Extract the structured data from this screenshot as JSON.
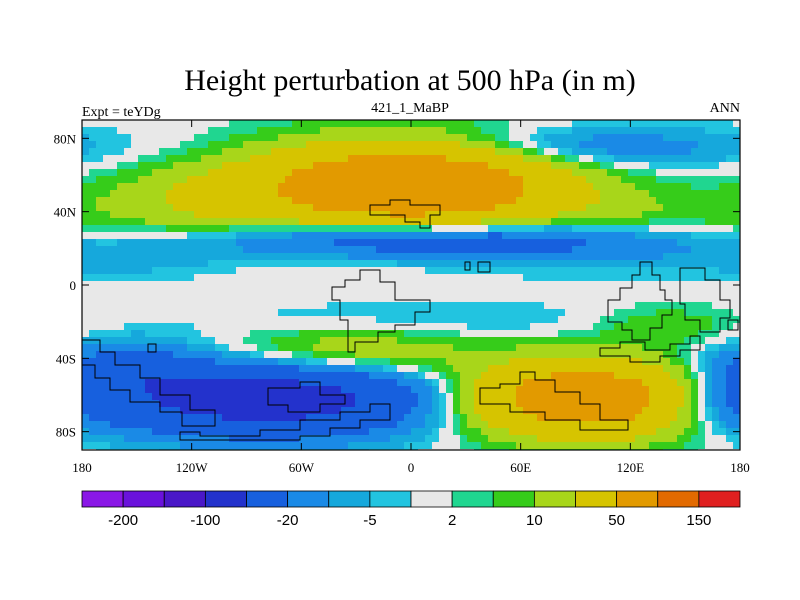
{
  "chart_data": {
    "type": "heatmap",
    "title": "Height perturbation at 500 hPa (in m)",
    "left_label": "Expt = teYDg",
    "center_label": "421_1_MaBP",
    "right_label": "ANN",
    "x_ticks": [
      "180",
      "120W",
      "60W",
      "0",
      "60E",
      "120E",
      "180"
    ],
    "y_ticks": [
      "80N",
      "40N",
      "0",
      "40S",
      "80S"
    ],
    "xlim": [
      -180,
      180
    ],
    "ylim": [
      -90,
      90
    ],
    "colorbar": {
      "colors": [
        "#8a17e6",
        "#6a12dc",
        "#4a17c8",
        "#2332cc",
        "#1760de",
        "#1a8ae6",
        "#16a8dc",
        "#22c4e0",
        "#e8e8e8",
        "#20d690",
        "#36cc1a",
        "#a8d61a",
        "#d6c400",
        "#e29a00",
        "#e26a00",
        "#e02020"
      ],
      "labels": [
        "-200",
        "-100",
        "-20",
        "-5",
        "2",
        "10",
        "50",
        "150"
      ]
    },
    "field_blobs": [
      {
        "lon": 0,
        "lat": 55,
        "slon": 55,
        "slat": 16,
        "amp": 95
      },
      {
        "lon": -110,
        "lat": 45,
        "slon": 45,
        "slat": 14,
        "amp": 18
      },
      {
        "lon": 80,
        "lat": 75,
        "slon": 70,
        "slat": 8,
        "amp": -20
      },
      {
        "lon": 120,
        "lat": 38,
        "slon": 50,
        "slat": 10,
        "amp": 8
      },
      {
        "lon": 10,
        "lat": 25,
        "slon": 80,
        "slat": 7,
        "amp": -40
      },
      {
        "lon": 100,
        "lat": 15,
        "slon": 60,
        "slat": 8,
        "amp": -6
      },
      {
        "lon": -150,
        "lat": 15,
        "slon": 40,
        "slat": 8,
        "amp": -7
      },
      {
        "lon": -35,
        "lat": -37,
        "slon": 50,
        "slat": 10,
        "amp": 22
      },
      {
        "lon": 140,
        "lat": -22,
        "slon": 30,
        "slat": 8,
        "amp": 10
      },
      {
        "lon": -80,
        "lat": -62,
        "slon": 65,
        "slat": 14,
        "amp": -70
      },
      {
        "lon": -160,
        "lat": -45,
        "slon": 30,
        "slat": 10,
        "amp": -25
      },
      {
        "lon": 95,
        "lat": -62,
        "slon": 45,
        "slat": 14,
        "amp": 85
      },
      {
        "lon": 10,
        "lat": -20,
        "slon": 90,
        "slat": 8,
        "amp": -6
      },
      {
        "lon": 170,
        "lat": -65,
        "slon": 25,
        "slat": 10,
        "amp": -18
      }
    ]
  }
}
